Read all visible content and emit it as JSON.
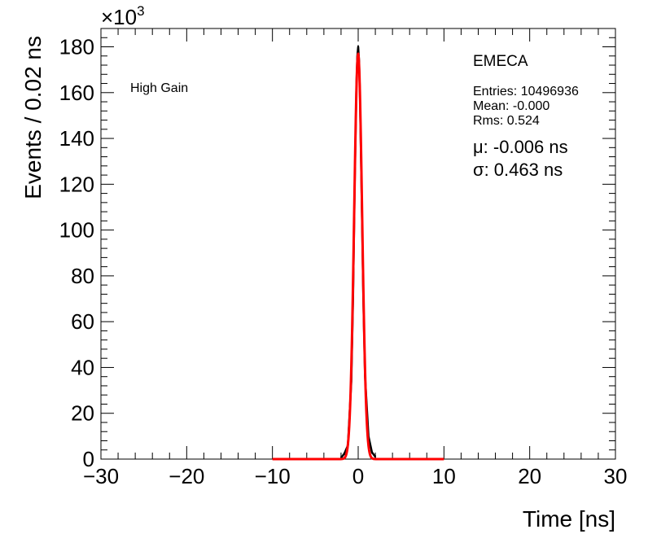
{
  "chart_data": {
    "type": "line",
    "title": "",
    "xlabel": "Time [ns]",
    "ylabel": "Events / 0.02 ns",
    "y_multiplier": "×10",
    "y_multiplier_exp": "3",
    "xlim": [
      -30,
      30
    ],
    "ylim": [
      0,
      188
    ],
    "xticks": [
      -30,
      -20,
      -10,
      0,
      10,
      20,
      30
    ],
    "yticks": [
      0,
      20,
      40,
      60,
      80,
      100,
      120,
      140,
      160,
      180
    ],
    "grid": false,
    "legend": "none",
    "annotations": {
      "gain": "High Gain",
      "name": "EMECA",
      "entries": "Entries: 10496936",
      "mean": "Mean: -0.000",
      "rms": "Rms: 0.524",
      "mu": "μ: -0.006 ns",
      "sigma": "σ: 0.463 ns"
    },
    "series": [
      {
        "kind": "histogram",
        "color": "#000000",
        "x": [
          -2.0,
          -1.6,
          -1.2,
          -0.8,
          -0.6,
          -0.4,
          -0.2,
          -0.1,
          0.0,
          0.1,
          0.2,
          0.4,
          0.6,
          0.8,
          1.2,
          1.6,
          2.0
        ],
        "y": [
          0.5,
          2.5,
          6,
          34,
          70,
          122,
          164,
          176,
          180,
          174,
          160,
          116,
          70,
          36,
          10,
          3,
          1
        ]
      },
      {
        "kind": "fit",
        "color": "#ff0000",
        "range": [
          -10,
          10
        ],
        "amplitude": 177,
        "mu": -0.006,
        "sigma": 0.463
      }
    ]
  }
}
